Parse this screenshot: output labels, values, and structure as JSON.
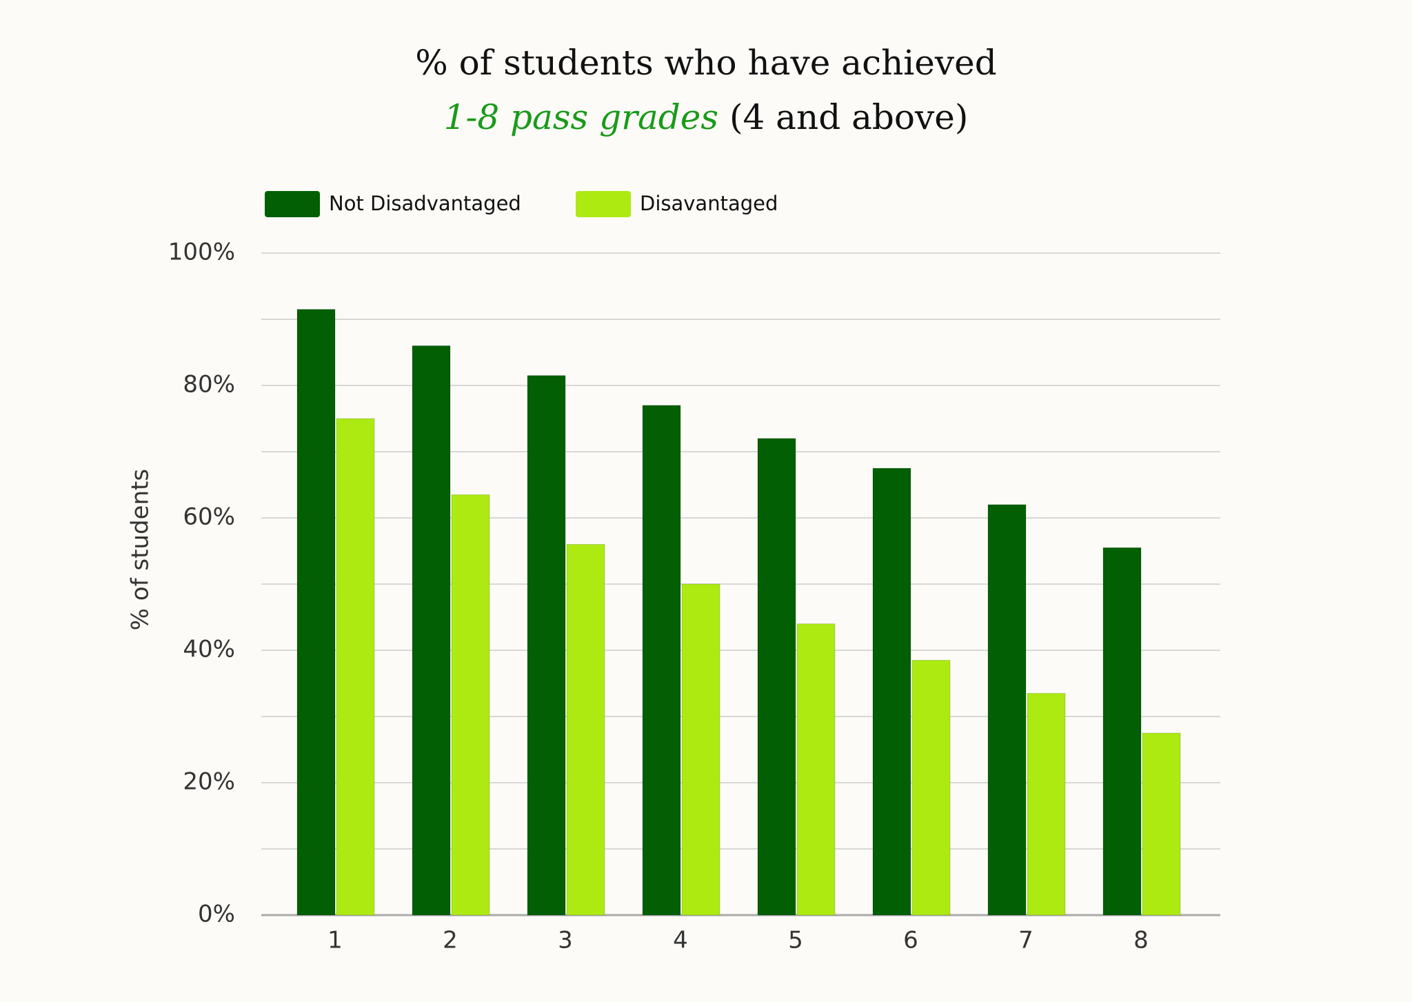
{
  "chart_data": {
    "type": "bar",
    "title": [
      "% of students who have achieved",
      "1-8 pass grades",
      "(4 and above)"
    ],
    "y_label": "% of students",
    "categories": [
      "1",
      "2",
      "3",
      "4",
      "5",
      "6",
      "7",
      "8"
    ],
    "series": [
      {
        "name": "Not Disadvantaged",
        "color": "#025f03",
        "values": [
          91.5,
          86,
          81.5,
          77,
          72,
          67.5,
          62,
          55.5
        ]
      },
      {
        "name": "Disavantaged",
        "color": "#acea12",
        "values": [
          75,
          63.5,
          56,
          50,
          44,
          38.5,
          33.5,
          27.5
        ]
      }
    ],
    "ylim": [
      0,
      100
    ],
    "yticks": [
      {
        "value": 0,
        "label": "0%"
      },
      {
        "value": 20,
        "label": "20%"
      },
      {
        "value": 40,
        "label": "40%"
      },
      {
        "value": 60,
        "label": "60%"
      },
      {
        "value": 80,
        "label": "80%"
      },
      {
        "value": 100,
        "label": "100%"
      }
    ],
    "minor_yticks": [
      10,
      30,
      50,
      70,
      90
    ],
    "grid": true,
    "title_highlight_color": "#1a9a1a",
    "legend": "top-left"
  }
}
